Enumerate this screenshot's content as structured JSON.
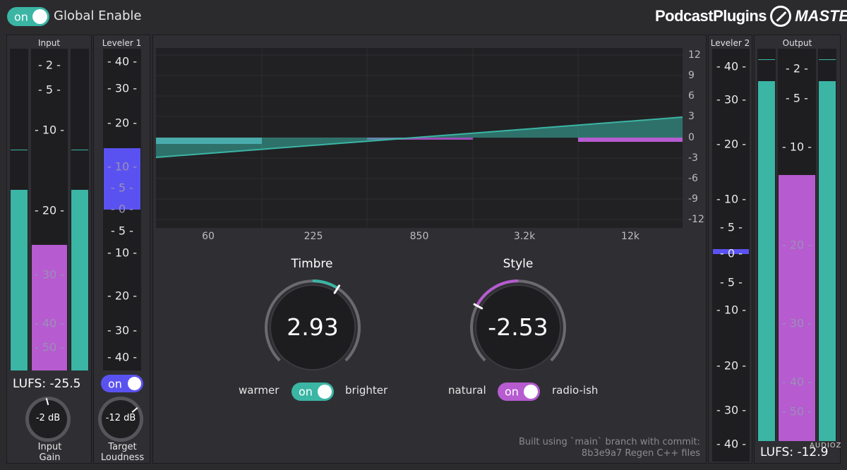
{
  "global": {
    "toggle_label": "on",
    "title": "Global Enable"
  },
  "brand": {
    "name": "PodcastPlugins",
    "product": "MASTER"
  },
  "input": {
    "title": "Input",
    "scale": [
      "- 2 -",
      "- 5 -",
      "- 10 -",
      "- 20 -",
      "- 30 -",
      "- 40 -",
      "- 50 -"
    ],
    "lufs": "LUFS: -25.5",
    "gain_value": "-2 dB",
    "gain_label_1": "Input",
    "gain_label_2": "Gain"
  },
  "leveler1": {
    "title": "Leveler 1",
    "scale": [
      "- 40 -",
      "- 30 -",
      "- 20 -",
      "- 10 -",
      "- 5 -",
      "- 0 -",
      "- 5 -",
      "- 10 -",
      "- 20 -",
      "- 30 -",
      "- 40 -"
    ],
    "toggle_label": "on",
    "target_value": "-12 dB",
    "target_label_1": "Target",
    "target_label_2": "Loudness"
  },
  "eq": {
    "db_labels": [
      "12",
      "9",
      "6",
      "3",
      "0",
      "-3",
      "-6",
      "-9",
      "-12"
    ],
    "freq_labels": [
      "60",
      "225",
      "850",
      "3.2k",
      "12k"
    ]
  },
  "timbre": {
    "title": "Timbre",
    "value": "2.93",
    "left_label": "warmer",
    "right_label": "brighter",
    "toggle_label": "on",
    "level": 0.62
  },
  "style": {
    "title": "Style",
    "value": "-2.53",
    "left_label": "natural",
    "right_label": "radio-ish",
    "toggle_label": "on",
    "level": 0.27
  },
  "build": {
    "line1": "Built using `main` branch with commit:",
    "line2": "8b3e9a7 Regen C++ files"
  },
  "leveler2": {
    "title": "Leveler 2",
    "scale": [
      "- 40 -",
      "- 30 -",
      "- 20 -",
      "- 10 -",
      "- 5 -",
      "- 0 -",
      "- 5 -",
      "- 10 -",
      "- 20 -",
      "- 30 -",
      "- 40 -"
    ]
  },
  "output": {
    "title": "Output",
    "scale": [
      "- 2 -",
      "- 5 -",
      "- 10 -",
      "- 20 -",
      "- 30 -",
      "- 40 -",
      "- 50 -"
    ],
    "lufs": "LUFS: -12.9"
  },
  "watermark": "AUDIOZ",
  "colors": {
    "teal": "#3bb5a4",
    "purple": "#b65bd0",
    "blue": "#5a52f0",
    "panel": "#2f2f33",
    "meter_bg": "#1e1e21"
  }
}
